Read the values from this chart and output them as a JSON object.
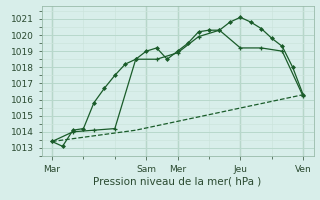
{
  "title": "Pression niveau de la mer( hPa )",
  "bg_color": "#d8eeea",
  "grid_major_color": "#b8d8cc",
  "grid_minor_color": "#cce4dc",
  "line_color": "#1a5c2a",
  "ylim": [
    1012.5,
    1021.8
  ],
  "yticks": [
    1013,
    1014,
    1015,
    1016,
    1017,
    1018,
    1019,
    1020,
    1021
  ],
  "xlim": [
    0,
    13
  ],
  "xtick_labels": [
    "Mar",
    "Sam",
    "Mer",
    "Jeu",
    "Ven"
  ],
  "xtick_positions": [
    0.5,
    5.0,
    6.5,
    9.5,
    12.5
  ],
  "vline_positions": [
    0.5,
    5.0,
    6.5,
    9.5,
    12.5
  ],
  "line1_x": [
    0.5,
    1.0,
    1.5,
    2.0,
    2.5,
    3.0,
    3.5,
    4.0,
    4.5,
    5.0,
    5.5,
    6.0,
    6.5,
    7.0,
    7.5,
    8.0,
    8.5,
    9.0,
    9.5,
    10.0,
    10.5,
    11.0,
    11.5,
    12.0,
    12.5
  ],
  "line1_y": [
    1013.4,
    1013.1,
    1014.1,
    1014.2,
    1015.8,
    1016.7,
    1017.5,
    1018.2,
    1018.5,
    1019.0,
    1019.2,
    1018.5,
    1019.0,
    1019.5,
    1020.2,
    1020.3,
    1020.3,
    1020.8,
    1021.1,
    1020.8,
    1020.4,
    1019.8,
    1019.3,
    1018.0,
    1016.3
  ],
  "line2_x": [
    0.5,
    1.5,
    2.5,
    3.5,
    4.5,
    5.5,
    6.5,
    7.5,
    8.5,
    9.5,
    10.5,
    11.5,
    12.5
  ],
  "line2_y": [
    1013.4,
    1014.0,
    1014.1,
    1014.2,
    1018.5,
    1018.5,
    1018.9,
    1019.9,
    1020.3,
    1019.2,
    1019.2,
    1019.0,
    1016.2
  ],
  "line3_x": [
    0.5,
    4.5,
    12.5
  ],
  "line3_y": [
    1013.4,
    1014.1,
    1016.3
  ]
}
